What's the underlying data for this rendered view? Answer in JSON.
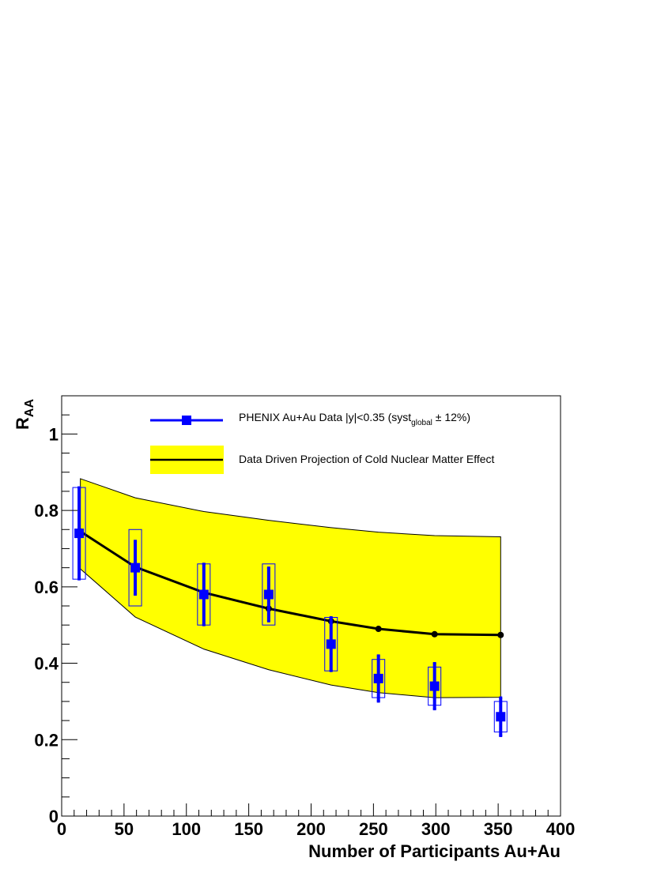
{
  "chart_data": {
    "type": "scatter",
    "title": "",
    "xlabel": "Number of Participants Au+Au",
    "ylabel": {
      "main": "R",
      "sub": "AA"
    },
    "xlim": [
      0,
      400
    ],
    "ylim": [
      0,
      1.1
    ],
    "x_ticks": [
      0,
      50,
      100,
      150,
      200,
      250,
      300,
      350,
      400
    ],
    "x_tick_labels": [
      "0",
      "50",
      "100",
      "150",
      "200",
      "250",
      "300",
      "350",
      "400"
    ],
    "y_ticks": [
      0,
      0.2,
      0.4,
      0.6,
      0.8,
      1
    ],
    "y_tick_labels": [
      "0",
      "0.2",
      "0.4",
      "0.6",
      "0.8",
      "1"
    ],
    "grid": false,
    "legend_position": "top",
    "series": [
      {
        "name": "PHENIX Au+Au Data |y|<0.35 (syst",
        "name_sub": "global",
        "name_suffix": " ± 12%)",
        "kind": "points-with-errors",
        "color": "#0000ff",
        "x": [
          14,
          59,
          114,
          166,
          216,
          254,
          299,
          352
        ],
        "y": [
          0.74,
          0.65,
          0.58,
          0.58,
          0.45,
          0.36,
          0.34,
          0.26
        ],
        "stat_err": [
          0.12,
          0.07,
          0.08,
          0.07,
          0.07,
          0.06,
          0.06,
          0.05
        ],
        "syst_low": [
          0.62,
          0.55,
          0.5,
          0.5,
          0.38,
          0.31,
          0.29,
          0.22
        ],
        "syst_high": [
          0.86,
          0.75,
          0.66,
          0.66,
          0.52,
          0.41,
          0.39,
          0.3
        ]
      },
      {
        "name": "Data Driven Projection of Cold Nuclear Matter Effect",
        "kind": "line-with-band",
        "line_color": "#000000",
        "band_color": "#ffff00",
        "x": [
          15,
          59,
          114,
          166,
          216,
          254,
          299,
          352
        ],
        "y": [
          0.745,
          0.652,
          0.585,
          0.543,
          0.51,
          0.49,
          0.476,
          0.474
        ],
        "band_x": [
          15,
          59,
          114,
          166,
          216,
          254,
          299,
          352
        ],
        "band_high": [
          0.883,
          0.833,
          0.797,
          0.774,
          0.755,
          0.743,
          0.734,
          0.731
        ],
        "band_low": [
          0.647,
          0.521,
          0.437,
          0.383,
          0.343,
          0.323,
          0.31,
          0.311
        ]
      }
    ]
  }
}
